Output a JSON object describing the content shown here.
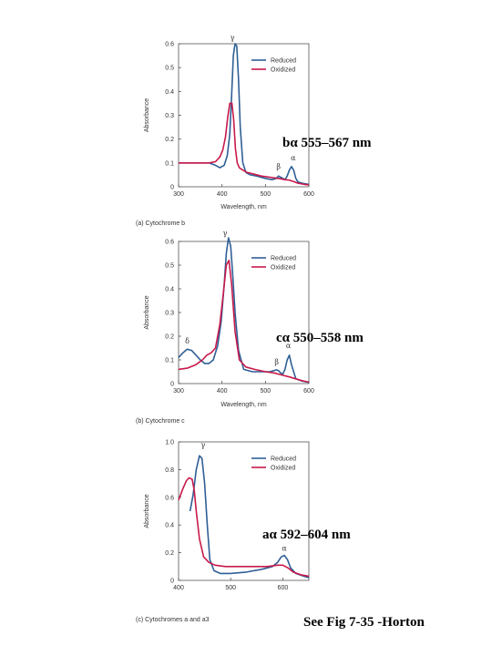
{
  "colors": {
    "reduced": "#2f5f95",
    "oxidized": "#c8194a",
    "axis": "#555555",
    "text": "#333333"
  },
  "overlay_labels": {
    "b": "bα 555–567 nm",
    "c": "cα 550–558 nm",
    "a": "aα 592–604 nm",
    "source": "See Fig 7-35 -Horton"
  },
  "chart_data": [
    {
      "type": "line",
      "caption": "(a) Cytochrome b",
      "xlabel": "Wavelength, nm",
      "ylabel": "Absorbance",
      "xlim": [
        300,
        600
      ],
      "ylim": [
        0,
        0.6
      ],
      "xticks": [
        300,
        400,
        500,
        600
      ],
      "yticks": [
        0,
        0.1,
        0.2,
        0.3,
        0.4,
        0.5,
        0.6
      ],
      "ytick_labels": [
        "0",
        "0.1",
        "0.2",
        "0.3",
        "0.4",
        "0.5",
        "0.6"
      ],
      "grid": false,
      "legend": "top-right",
      "series": [
        {
          "name": "Reduced",
          "x": [
            300,
            340,
            370,
            385,
            395,
            405,
            412,
            418,
            422,
            426,
            430,
            434,
            438,
            442,
            448,
            455,
            465,
            480,
            500,
            515,
            525,
            530,
            535,
            540,
            545,
            550,
            555,
            560,
            565,
            570,
            575,
            585,
            600
          ],
          "y": [
            0.1,
            0.1,
            0.1,
            0.09,
            0.08,
            0.09,
            0.13,
            0.22,
            0.38,
            0.55,
            0.6,
            0.59,
            0.45,
            0.25,
            0.1,
            0.06,
            0.05,
            0.045,
            0.035,
            0.03,
            0.035,
            0.045,
            0.04,
            0.035,
            0.03,
            0.045,
            0.07,
            0.085,
            0.07,
            0.035,
            0.02,
            0.015,
            0.01
          ]
        },
        {
          "name": "Oxidized",
          "x": [
            300,
            340,
            370,
            385,
            395,
            402,
            408,
            413,
            418,
            423,
            427,
            431,
            435,
            440,
            448,
            458,
            470,
            490,
            510,
            530,
            545,
            555,
            565,
            575,
            590,
            600
          ],
          "y": [
            0.1,
            0.1,
            0.1,
            0.105,
            0.125,
            0.155,
            0.21,
            0.29,
            0.35,
            0.35,
            0.28,
            0.16,
            0.1,
            0.08,
            0.07,
            0.06,
            0.055,
            0.045,
            0.04,
            0.035,
            0.03,
            0.028,
            0.022,
            0.015,
            0.01,
            0.008
          ]
        }
      ],
      "annotations": [
        {
          "text": "γ",
          "x": 424,
          "y": 0.615
        },
        {
          "text": "β",
          "x": 530,
          "y": 0.075
        },
        {
          "text": "α",
          "x": 564,
          "y": 0.11
        }
      ]
    },
    {
      "type": "line",
      "caption": "(b) Cytochrome c",
      "xlabel": "Wavelength, nm",
      "ylabel": "Absorbance",
      "xlim": [
        300,
        600
      ],
      "ylim": [
        0,
        0.6
      ],
      "xticks": [
        300,
        400,
        500,
        600
      ],
      "yticks": [
        0,
        0.1,
        0.2,
        0.3,
        0.4,
        0.5,
        0.6
      ],
      "ytick_labels": [
        "0",
        "0.1",
        "0.2",
        "0.3",
        "0.4",
        "0.5",
        "0.6"
      ],
      "grid": false,
      "legend": "top-right",
      "series": [
        {
          "name": "Reduced",
          "x": [
            300,
            310,
            320,
            330,
            340,
            350,
            360,
            370,
            380,
            390,
            398,
            405,
            410,
            415,
            420,
            425,
            430,
            438,
            450,
            470,
            490,
            510,
            520,
            525,
            530,
            535,
            540,
            545,
            550,
            555,
            560,
            570,
            585,
            600
          ],
          "y": [
            0.11,
            0.13,
            0.145,
            0.14,
            0.12,
            0.1,
            0.085,
            0.085,
            0.1,
            0.16,
            0.26,
            0.42,
            0.55,
            0.615,
            0.58,
            0.45,
            0.3,
            0.14,
            0.06,
            0.05,
            0.05,
            0.05,
            0.055,
            0.058,
            0.055,
            0.045,
            0.04,
            0.06,
            0.1,
            0.12,
            0.08,
            0.02,
            0.01,
            0.005
          ]
        },
        {
          "name": "Oxidized",
          "x": [
            300,
            320,
            340,
            355,
            365,
            375,
            385,
            395,
            403,
            410,
            416,
            422,
            430,
            440,
            455,
            475,
            500,
            520,
            530,
            540,
            555,
            570,
            585,
            600
          ],
          "y": [
            0.06,
            0.065,
            0.08,
            0.1,
            0.12,
            0.13,
            0.15,
            0.25,
            0.38,
            0.5,
            0.52,
            0.42,
            0.22,
            0.1,
            0.07,
            0.06,
            0.05,
            0.045,
            0.04,
            0.035,
            0.028,
            0.02,
            0.012,
            0.006
          ]
        }
      ],
      "annotations": [
        {
          "text": "γ",
          "x": 407,
          "y": 0.625
        },
        {
          "text": "δ",
          "x": 320,
          "y": 0.17
        },
        {
          "text": "β",
          "x": 526,
          "y": 0.08
        },
        {
          "text": "α",
          "x": 553,
          "y": 0.15
        }
      ]
    },
    {
      "type": "line",
      "caption": "(c) Cytochromes a and a3",
      "xlabel": "",
      "ylabel": "Absorbance",
      "xlim": [
        400,
        650
      ],
      "ylim": [
        0,
        1.0
      ],
      "xticks": [
        400,
        500,
        600
      ],
      "yticks": [
        0,
        0.2,
        0.4,
        0.6,
        0.8,
        1.0
      ],
      "ytick_labels": [
        "0",
        "0.2",
        "0.4",
        "0.6",
        "0.8",
        "1.0"
      ],
      "grid": false,
      "legend": "top-right",
      "series": [
        {
          "name": "Reduced",
          "x": [
            422,
            428,
            434,
            440,
            445,
            450,
            455,
            460,
            468,
            480,
            500,
            530,
            560,
            580,
            590,
            597,
            603,
            609,
            615,
            625,
            640,
            650
          ],
          "y": [
            0.5,
            0.62,
            0.8,
            0.9,
            0.88,
            0.7,
            0.4,
            0.15,
            0.07,
            0.05,
            0.05,
            0.06,
            0.08,
            0.1,
            0.13,
            0.17,
            0.18,
            0.15,
            0.09,
            0.05,
            0.03,
            0.02
          ]
        },
        {
          "name": "Oxidized",
          "x": [
            400,
            408,
            415,
            420,
            426,
            430,
            434,
            440,
            448,
            458,
            470,
            490,
            520,
            550,
            570,
            590,
            600,
            610,
            620,
            635,
            650
          ],
          "y": [
            0.58,
            0.66,
            0.72,
            0.74,
            0.73,
            0.65,
            0.5,
            0.3,
            0.17,
            0.13,
            0.11,
            0.1,
            0.1,
            0.1,
            0.1,
            0.11,
            0.11,
            0.09,
            0.06,
            0.04,
            0.03
          ]
        }
      ],
      "annotations": [
        {
          "text": "γ",
          "x": 447,
          "y": 0.96
        },
        {
          "text": "α",
          "x": 603,
          "y": 0.215
        }
      ]
    }
  ]
}
